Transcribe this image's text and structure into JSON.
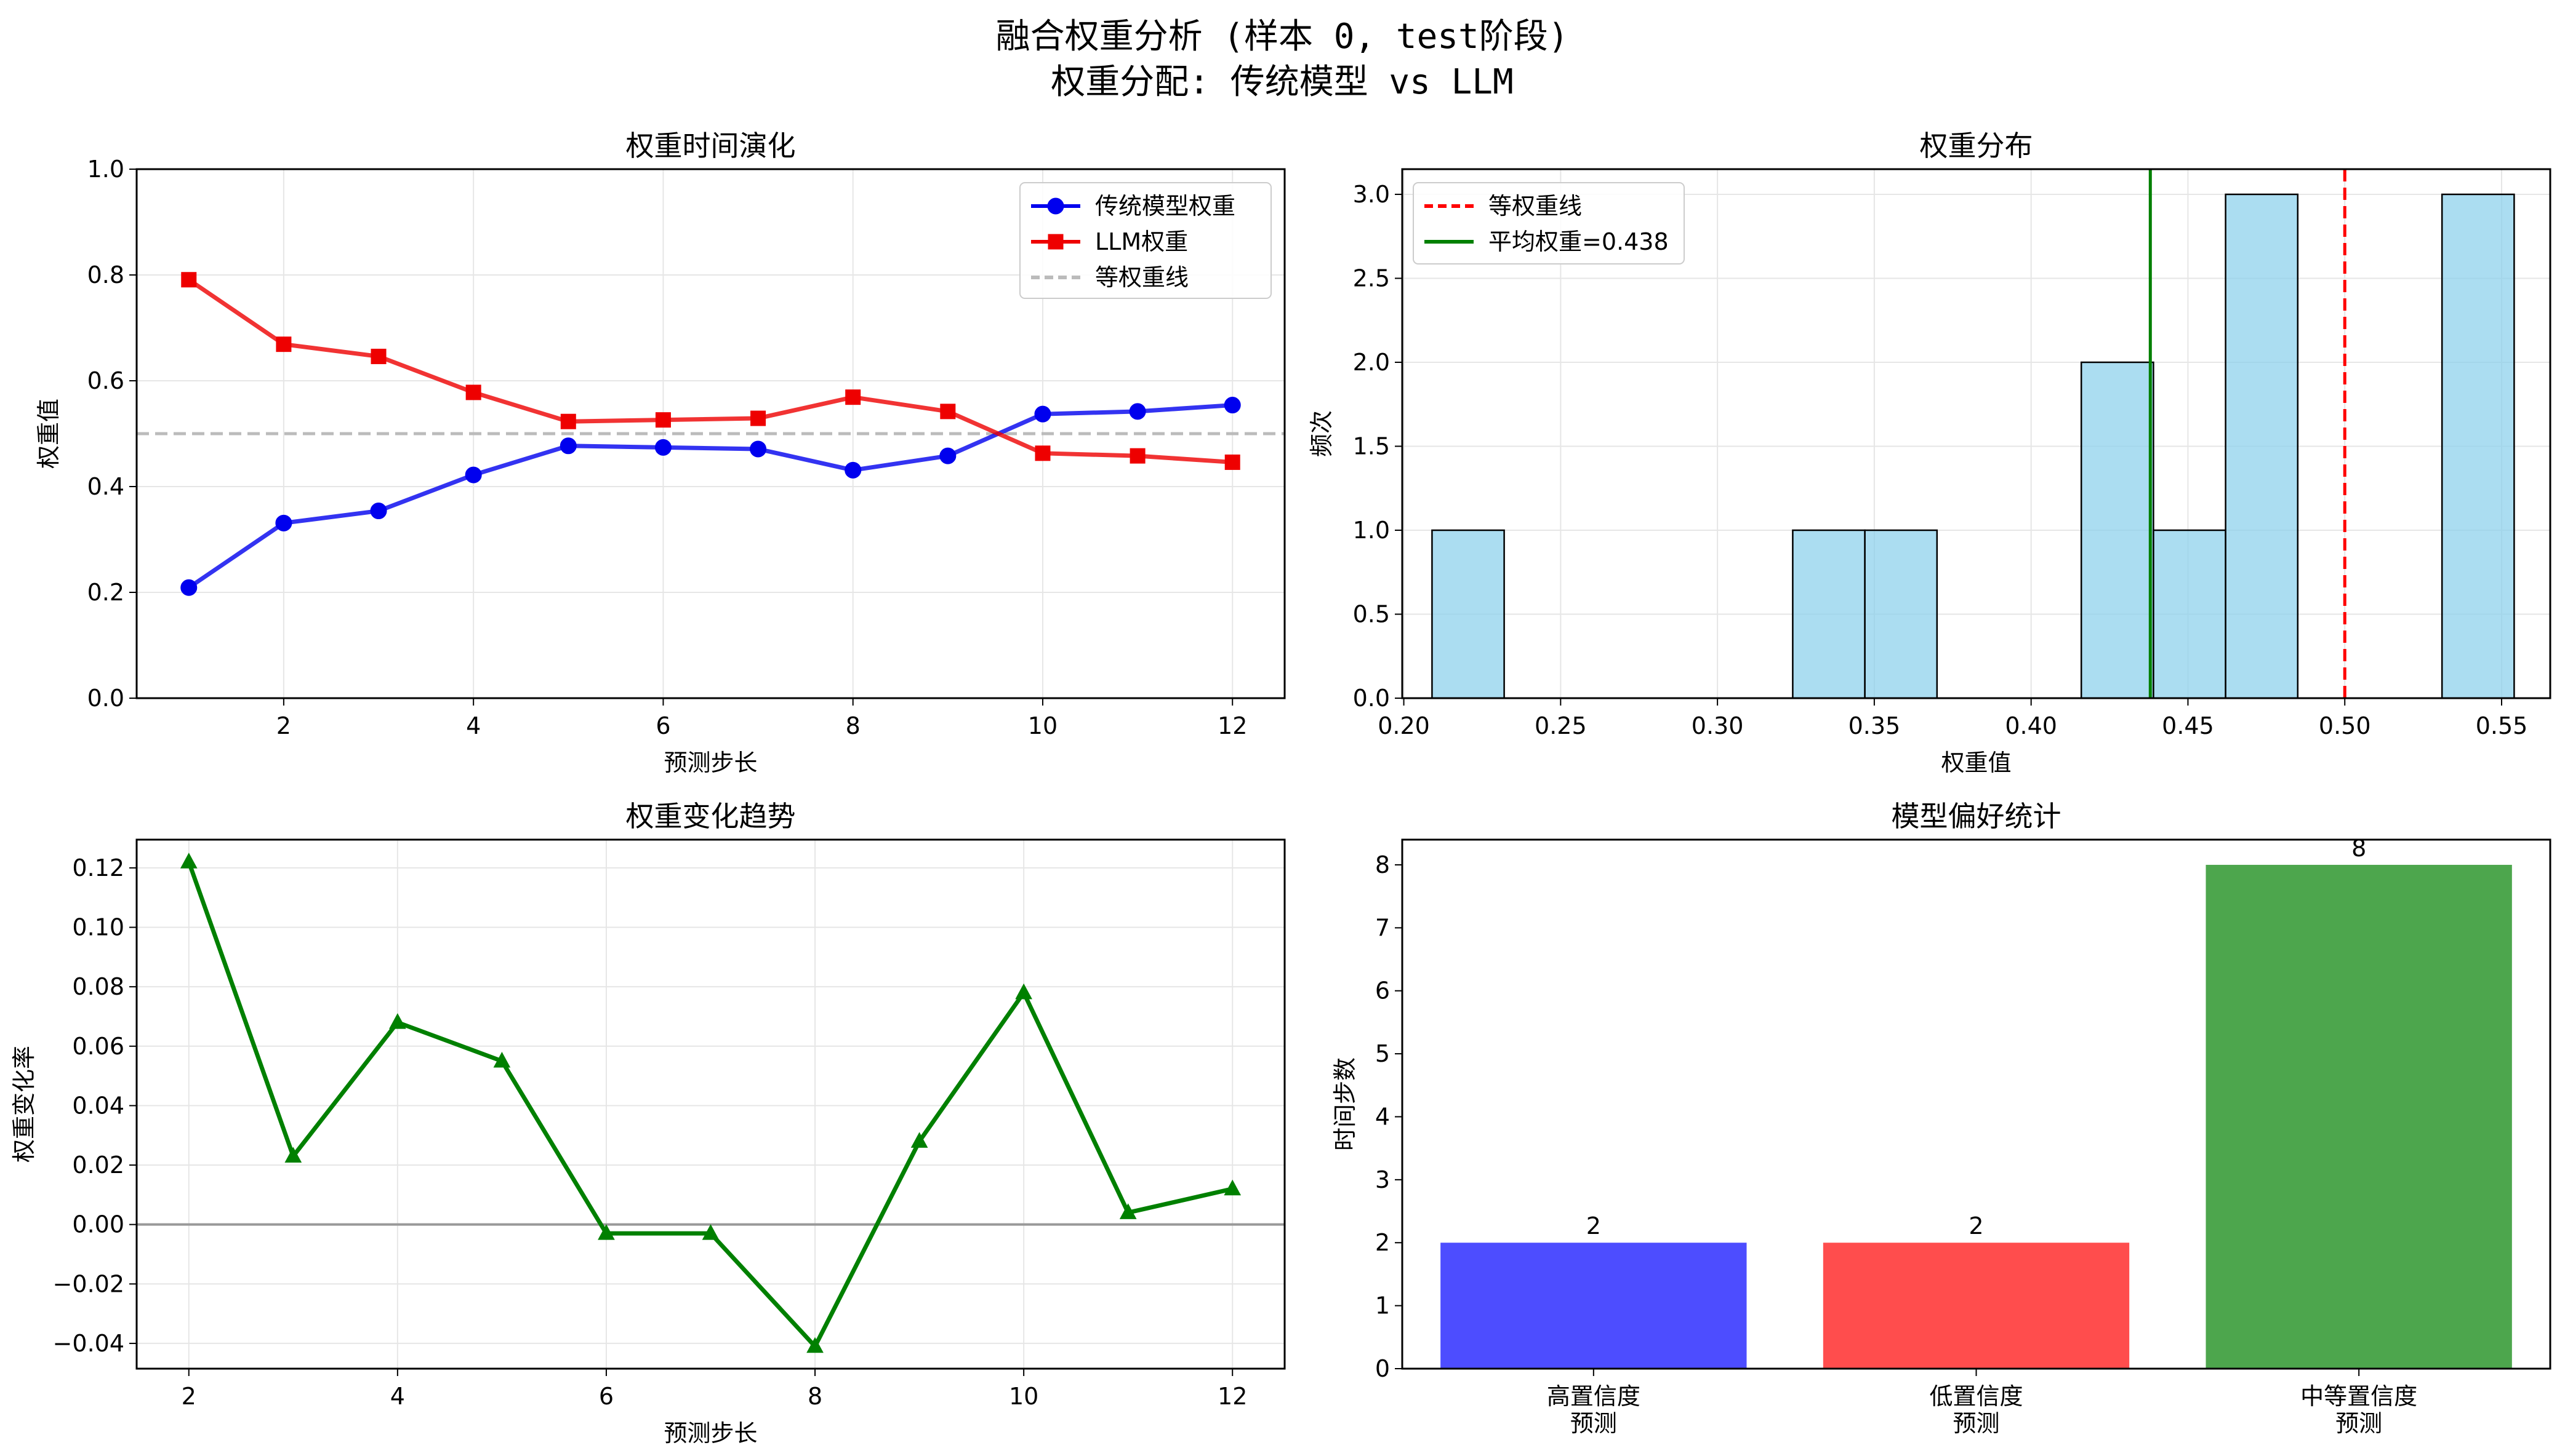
{
  "figure": {
    "title_line1": "融合权重分析 (样本 0, test阶段)",
    "title_line2": "权重分配: 传统模型 vs LLM"
  },
  "chart_data": [
    {
      "type": "line",
      "title": "权重时间演化",
      "xlabel": "预测步长",
      "ylabel": "权重值",
      "xlim": [
        0.45,
        12.55
      ],
      "ylim": [
        0,
        1
      ],
      "xticks": [
        2,
        4,
        6,
        8,
        10,
        12
      ],
      "yticks": [
        0.0,
        0.2,
        0.4,
        0.6,
        0.8,
        1.0
      ],
      "grid": true,
      "legend_position": "upper right",
      "x": [
        1,
        2,
        3,
        4,
        5,
        6,
        7,
        8,
        9,
        10,
        11,
        12
      ],
      "series": [
        {
          "name": "传统模型权重",
          "color": "#0000ee",
          "marker": "circle",
          "values": [
            0.209,
            0.331,
            0.354,
            0.422,
            0.477,
            0.474,
            0.471,
            0.431,
            0.458,
            0.537,
            0.542,
            0.554
          ]
        },
        {
          "name": "LLM权重",
          "color": "#ee0000",
          "marker": "square",
          "values": [
            0.791,
            0.669,
            0.646,
            0.578,
            0.523,
            0.526,
            0.529,
            0.569,
            0.542,
            0.463,
            0.458,
            0.446
          ]
        }
      ],
      "reference_lines": [
        {
          "name": "等权重线",
          "axis": "y",
          "value": 0.5,
          "color": "#bbbbbb",
          "style": "dashed"
        }
      ]
    },
    {
      "type": "histogram",
      "title": "权重分布",
      "xlabel": "权重值",
      "ylabel": "频次",
      "xlim": [
        0.1995,
        0.5655
      ],
      "ylim": [
        0,
        3.15
      ],
      "xticks": [
        0.2,
        0.25,
        0.3,
        0.35,
        0.4,
        0.45,
        0.5,
        0.55
      ],
      "yticks": [
        0.0,
        0.5,
        1.0,
        1.5,
        2.0,
        2.5,
        3.0
      ],
      "grid": true,
      "legend_position": "upper left",
      "bar_color": "#87ceeb",
      "bins": [
        {
          "from": 0.209,
          "to": 0.232,
          "count": 1
        },
        {
          "from": 0.232,
          "to": 0.255,
          "count": 0
        },
        {
          "from": 0.255,
          "to": 0.278,
          "count": 0
        },
        {
          "from": 0.278,
          "to": 0.301,
          "count": 0
        },
        {
          "from": 0.301,
          "to": 0.324,
          "count": 0
        },
        {
          "from": 0.324,
          "to": 0.347,
          "count": 1
        },
        {
          "from": 0.347,
          "to": 0.37,
          "count": 1
        },
        {
          "from": 0.37,
          "to": 0.393,
          "count": 0
        },
        {
          "from": 0.393,
          "to": 0.416,
          "count": 0
        },
        {
          "from": 0.416,
          "to": 0.439,
          "count": 2
        },
        {
          "from": 0.439,
          "to": 0.462,
          "count": 1
        },
        {
          "from": 0.462,
          "to": 0.485,
          "count": 3
        },
        {
          "from": 0.485,
          "to": 0.508,
          "count": 0
        },
        {
          "from": 0.508,
          "to": 0.531,
          "count": 0
        },
        {
          "from": 0.531,
          "to": 0.554,
          "count": 3
        }
      ],
      "reference_lines": [
        {
          "name": "等权重线",
          "axis": "x",
          "value": 0.5,
          "color": "#ff0000",
          "style": "dashed"
        },
        {
          "name": "平均权重=0.438",
          "axis": "x",
          "value": 0.438,
          "color": "#008000",
          "style": "solid"
        }
      ]
    },
    {
      "type": "line",
      "title": "权重变化趋势",
      "xlabel": "预测步长",
      "ylabel": "权重变化率",
      "xlim": [
        1.5,
        12.5
      ],
      "ylim": [
        -0.0485,
        0.1295
      ],
      "xticks": [
        2,
        4,
        6,
        8,
        10,
        12
      ],
      "yticks": [
        -0.04,
        -0.02,
        0.0,
        0.02,
        0.04,
        0.06,
        0.08,
        0.1,
        0.12
      ],
      "grid": true,
      "x": [
        2,
        3,
        4,
        5,
        6,
        7,
        8,
        9,
        10,
        11,
        12
      ],
      "series": [
        {
          "color": "#008000",
          "marker": "triangle",
          "values": [
            0.122,
            0.023,
            0.068,
            0.055,
            -0.003,
            -0.003,
            -0.041,
            0.028,
            0.078,
            0.004,
            0.012
          ]
        }
      ],
      "reference_lines": [
        {
          "axis": "y",
          "value": 0,
          "color": "#999999",
          "style": "solid"
        }
      ]
    },
    {
      "type": "bar",
      "title": "模型偏好统计",
      "ylabel": "时间步数",
      "ylim": [
        0,
        8.4
      ],
      "yticks": [
        0,
        1,
        2,
        3,
        4,
        5,
        6,
        7,
        8
      ],
      "categories": [
        [
          "高置信度",
          "预测"
        ],
        [
          "低置信度",
          "预测"
        ],
        [
          "中等置信度",
          "预测"
        ]
      ],
      "values": [
        2,
        2,
        8
      ],
      "colors": [
        "#4d4dff",
        "#ff4d4d",
        "#4da64d"
      ],
      "data_labels": [
        "2",
        "2",
        "8"
      ]
    }
  ]
}
